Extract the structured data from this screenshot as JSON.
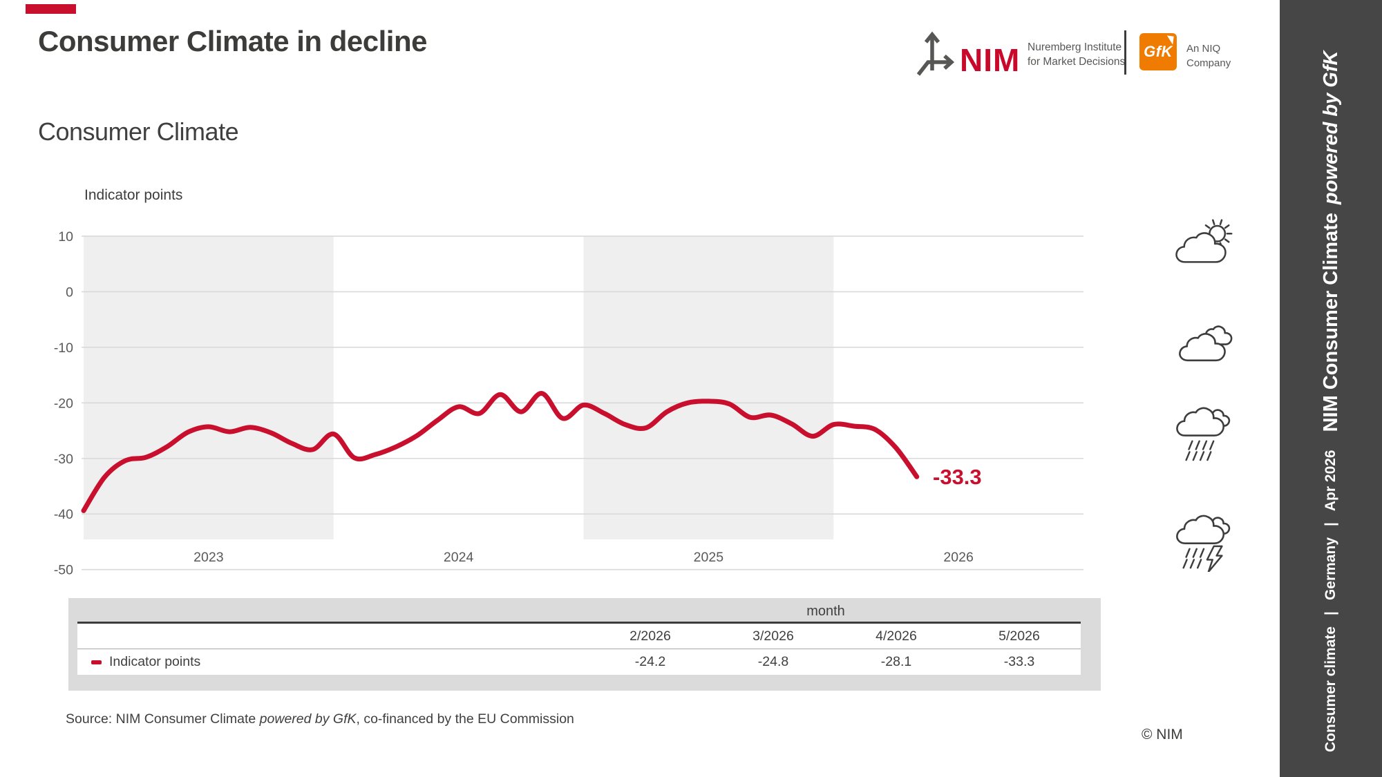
{
  "header": {
    "title": "Consumer Climate in decline",
    "subtitle": "Consumer Climate"
  },
  "logos": {
    "nim_wordmark": "NIM",
    "nim_line1": "Nuremberg Institute",
    "nim_line2": "for Market Decisions",
    "gfk_wordmark": "GfK",
    "niq_line1": "An NIQ",
    "niq_line2": "Company"
  },
  "chart_data": {
    "type": "line",
    "title": "Indicator points",
    "series_name": "Indicator points",
    "x_start_month": "1/2023",
    "x_end_month": "5/2026",
    "year_labels": [
      "2023",
      "2024",
      "2025",
      "2026"
    ],
    "shaded_years": [
      "2023",
      "2025"
    ],
    "y_ticks": [
      10,
      0,
      -10,
      -20,
      -30,
      -40,
      -50
    ],
    "ylim": [
      -50,
      10
    ],
    "grid": true,
    "line_color": "#C8102E",
    "end_label": "-33.3",
    "values": [
      -39.4,
      -33.4,
      -30.4,
      -29.8,
      -27.9,
      -25.3,
      -24.3,
      -25.2,
      -24.4,
      -25.4,
      -27.3,
      -28.4,
      -25.6,
      -29.9,
      -29.3,
      -27.9,
      -25.9,
      -23.1,
      -20.7,
      -21.9,
      -18.5,
      -21.6,
      -18.3,
      -22.8,
      -20.4,
      -21.9,
      -23.9,
      -24.5,
      -21.6,
      -20.0,
      -19.7,
      -20.2,
      -22.6,
      -22.2,
      -23.8,
      -26.0,
      -23.9,
      -24.2,
      -24.8,
      -28.1,
      -33.3
    ]
  },
  "table": {
    "group_header": "month",
    "columns": [
      "2/2026",
      "3/2026",
      "4/2026",
      "5/2026"
    ],
    "row_label": "Indicator points",
    "values": [
      "-24.2",
      "-24.8",
      "-28.1",
      "-33.3"
    ]
  },
  "footer": {
    "source_prefix": "Source: NIM Consumer Climate ",
    "source_italic": "powered by GfK",
    "source_suffix": ", co-financed by the EU Commission",
    "copyright": "© NIM"
  },
  "sidebar": {
    "section": "Consumer climate",
    "divider1": "|",
    "region": "Germany",
    "divider2": "|",
    "date": "Apr 2026",
    "brand": "NIM Consumer Climate",
    "brand_suffix": "powered by GfK"
  },
  "icons": {
    "weather": [
      "sun-behind-cloud",
      "clouds",
      "rain-cloud",
      "storm-cloud"
    ]
  },
  "colors": {
    "accent_red": "#C8102E",
    "sidebar_bg": "#464646",
    "gfk_orange": "#EF7C00",
    "band_gray": "#EFEFEF",
    "table_panel": "#DBDBDB"
  }
}
